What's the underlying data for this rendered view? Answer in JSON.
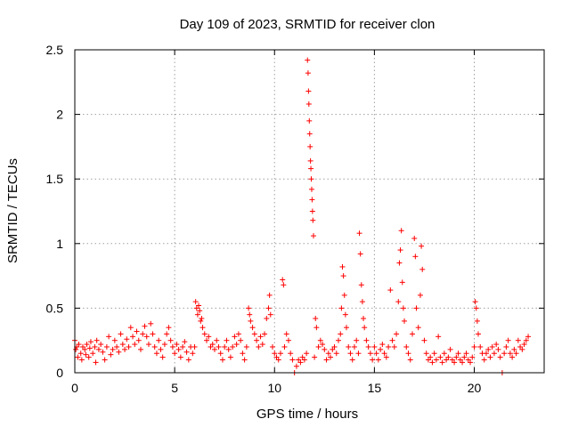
{
  "chart_data": {
    "type": "scatter",
    "title": "Day 109 of 2023, SRMTID for receiver clon",
    "xlabel": "GPS time / hours",
    "ylabel": "SRMTID / TECUs",
    "xlim": [
      0,
      23.5
    ],
    "ylim": [
      0,
      2.5
    ],
    "xticks": [
      0,
      5,
      10,
      15,
      20
    ],
    "yticks": [
      0,
      0.5,
      1,
      1.5,
      2,
      2.5
    ],
    "xtick_labels": [
      "0",
      "5",
      "10",
      "15",
      "20"
    ],
    "ytick_labels": [
      "0",
      "0.5",
      "1",
      "1.5",
      "2",
      "2.5"
    ],
    "grid": true,
    "marker": "+",
    "colors": {
      "series": "#ff0000",
      "grid": "#a0a0a0"
    },
    "series": [
      {
        "name": "SRMTID",
        "points": [
          [
            0.0,
            0.25
          ],
          [
            0.05,
            0.18
          ],
          [
            0.1,
            0.2
          ],
          [
            0.15,
            0.12
          ],
          [
            0.2,
            0.22
          ],
          [
            0.3,
            0.15
          ],
          [
            0.35,
            0.1
          ],
          [
            0.4,
            0.2
          ],
          [
            0.5,
            0.18
          ],
          [
            0.55,
            0.14
          ],
          [
            0.6,
            0.22
          ],
          [
            0.7,
            0.12
          ],
          [
            0.75,
            0.19
          ],
          [
            0.8,
            0.24
          ],
          [
            0.9,
            0.15
          ],
          [
            1.0,
            0.2
          ],
          [
            1.05,
            0.08
          ],
          [
            1.1,
            0.25
          ],
          [
            1.2,
            0.18
          ],
          [
            1.3,
            0.22
          ],
          [
            1.4,
            0.16
          ],
          [
            1.5,
            0.1
          ],
          [
            1.6,
            0.2
          ],
          [
            1.7,
            0.28
          ],
          [
            1.8,
            0.14
          ],
          [
            1.9,
            0.18
          ],
          [
            2.0,
            0.25
          ],
          [
            2.1,
            0.2
          ],
          [
            2.2,
            0.16
          ],
          [
            2.3,
            0.3
          ],
          [
            2.4,
            0.22
          ],
          [
            2.5,
            0.18
          ],
          [
            2.6,
            0.26
          ],
          [
            2.7,
            0.2
          ],
          [
            2.8,
            0.35
          ],
          [
            2.9,
            0.28
          ],
          [
            3.0,
            0.22
          ],
          [
            3.1,
            0.32
          ],
          [
            3.2,
            0.25
          ],
          [
            3.3,
            0.18
          ],
          [
            3.4,
            0.3
          ],
          [
            3.5,
            0.36
          ],
          [
            3.6,
            0.28
          ],
          [
            3.7,
            0.22
          ],
          [
            3.8,
            0.38
          ],
          [
            3.9,
            0.3
          ],
          [
            4.0,
            0.2
          ],
          [
            4.1,
            0.15
          ],
          [
            4.2,
            0.25
          ],
          [
            4.3,
            0.18
          ],
          [
            4.4,
            0.12
          ],
          [
            4.5,
            0.22
          ],
          [
            4.6,
            0.3
          ],
          [
            4.7,
            0.35
          ],
          [
            4.8,
            0.25
          ],
          [
            4.9,
            0.2
          ],
          [
            5.0,
            0.15
          ],
          [
            5.1,
            0.22
          ],
          [
            5.2,
            0.18
          ],
          [
            5.3,
            0.12
          ],
          [
            5.4,
            0.2
          ],
          [
            5.5,
            0.24
          ],
          [
            5.6,
            0.16
          ],
          [
            5.7,
            0.1
          ],
          [
            5.8,
            0.2
          ],
          [
            5.9,
            0.15
          ],
          [
            6.0,
            0.2
          ],
          [
            6.05,
            0.55
          ],
          [
            6.1,
            0.5
          ],
          [
            6.15,
            0.45
          ],
          [
            6.2,
            0.52
          ],
          [
            6.25,
            0.48
          ],
          [
            6.3,
            0.4
          ],
          [
            6.35,
            0.42
          ],
          [
            6.4,
            0.35
          ],
          [
            6.5,
            0.3
          ],
          [
            6.6,
            0.25
          ],
          [
            6.7,
            0.28
          ],
          [
            6.8,
            0.2
          ],
          [
            6.9,
            0.22
          ],
          [
            7.0,
            0.18
          ],
          [
            7.1,
            0.25
          ],
          [
            7.2,
            0.2
          ],
          [
            7.3,
            0.15
          ],
          [
            7.4,
            0.1
          ],
          [
            7.5,
            0.2
          ],
          [
            7.6,
            0.25
          ],
          [
            7.7,
            0.18
          ],
          [
            7.8,
            0.12
          ],
          [
            7.9,
            0.2
          ],
          [
            8.0,
            0.28
          ],
          [
            8.1,
            0.22
          ],
          [
            8.2,
            0.3
          ],
          [
            8.3,
            0.25
          ],
          [
            8.4,
            0.15
          ],
          [
            8.5,
            0.1
          ],
          [
            8.6,
            0.2
          ],
          [
            8.7,
            0.5
          ],
          [
            8.75,
            0.45
          ],
          [
            8.8,
            0.4
          ],
          [
            8.9,
            0.35
          ],
          [
            9.0,
            0.3
          ],
          [
            9.1,
            0.25
          ],
          [
            9.2,
            0.2
          ],
          [
            9.3,
            0.28
          ],
          [
            9.4,
            0.22
          ],
          [
            9.5,
            0.3
          ],
          [
            9.6,
            0.42
          ],
          [
            9.7,
            0.5
          ],
          [
            9.75,
            0.6
          ],
          [
            9.8,
            0.45
          ],
          [
            9.9,
            0.2
          ],
          [
            10.0,
            0.15
          ],
          [
            10.1,
            0.12
          ],
          [
            10.2,
            0.1
          ],
          [
            10.3,
            0.15
          ],
          [
            10.4,
            0.72
          ],
          [
            10.45,
            0.68
          ],
          [
            10.5,
            0.2
          ],
          [
            10.6,
            0.3
          ],
          [
            10.7,
            0.25
          ],
          [
            10.8,
            0.15
          ],
          [
            10.9,
            0.1
          ],
          [
            11.0,
            0.0
          ],
          [
            11.1,
            0.05
          ],
          [
            11.2,
            0.1
          ],
          [
            11.3,
            0.08
          ],
          [
            11.4,
            0.12
          ],
          [
            11.5,
            0.1
          ],
          [
            11.6,
            0.15
          ],
          [
            11.65,
            2.42
          ],
          [
            11.68,
            2.32
          ],
          [
            11.7,
            2.18
          ],
          [
            11.72,
            2.08
          ],
          [
            11.74,
            1.95
          ],
          [
            11.76,
            1.85
          ],
          [
            11.78,
            1.75
          ],
          [
            11.8,
            1.64
          ],
          [
            11.82,
            1.58
          ],
          [
            11.84,
            1.5
          ],
          [
            11.86,
            1.42
          ],
          [
            11.88,
            1.34
          ],
          [
            11.9,
            1.25
          ],
          [
            11.92,
            1.18
          ],
          [
            11.95,
            1.06
          ],
          [
            12.0,
            0.12
          ],
          [
            12.05,
            0.42
          ],
          [
            12.1,
            0.35
          ],
          [
            12.2,
            0.2
          ],
          [
            12.3,
            0.25
          ],
          [
            12.4,
            0.22
          ],
          [
            12.5,
            0.18
          ],
          [
            12.6,
            0.1
          ],
          [
            12.7,
            0.15
          ],
          [
            12.8,
            0.12
          ],
          [
            12.9,
            0.18
          ],
          [
            13.0,
            0.2
          ],
          [
            13.1,
            0.15
          ],
          [
            13.2,
            0.25
          ],
          [
            13.3,
            0.3
          ],
          [
            13.35,
            0.5
          ],
          [
            13.4,
            0.82
          ],
          [
            13.45,
            0.75
          ],
          [
            13.5,
            0.6
          ],
          [
            13.55,
            0.45
          ],
          [
            13.6,
            0.35
          ],
          [
            13.7,
            0.2
          ],
          [
            13.8,
            0.15
          ],
          [
            13.9,
            0.1
          ],
          [
            14.0,
            0.2
          ],
          [
            14.1,
            0.25
          ],
          [
            14.2,
            0.15
          ],
          [
            14.25,
            1.08
          ],
          [
            14.3,
            0.92
          ],
          [
            14.35,
            0.68
          ],
          [
            14.4,
            0.55
          ],
          [
            14.45,
            0.42
          ],
          [
            14.5,
            0.35
          ],
          [
            14.6,
            0.25
          ],
          [
            14.7,
            0.2
          ],
          [
            14.8,
            0.15
          ],
          [
            14.9,
            0.1
          ],
          [
            15.0,
            0.2
          ],
          [
            15.1,
            0.15
          ],
          [
            15.2,
            0.1
          ],
          [
            15.3,
            0.18
          ],
          [
            15.4,
            0.22
          ],
          [
            15.5,
            0.15
          ],
          [
            15.6,
            0.12
          ],
          [
            15.7,
            0.2
          ],
          [
            15.8,
            0.64
          ],
          [
            15.9,
            0.25
          ],
          [
            16.0,
            0.2
          ],
          [
            16.1,
            0.3
          ],
          [
            16.2,
            0.55
          ],
          [
            16.25,
            0.85
          ],
          [
            16.3,
            0.95
          ],
          [
            16.35,
            1.1
          ],
          [
            16.4,
            0.7
          ],
          [
            16.45,
            0.5
          ],
          [
            16.5,
            0.4
          ],
          [
            16.6,
            0.2
          ],
          [
            16.7,
            0.15
          ],
          [
            16.8,
            0.1
          ],
          [
            16.9,
            0.3
          ],
          [
            17.0,
            1.04
          ],
          [
            17.05,
            0.9
          ],
          [
            17.1,
            0.5
          ],
          [
            17.2,
            0.35
          ],
          [
            17.3,
            0.6
          ],
          [
            17.35,
            0.98
          ],
          [
            17.4,
            0.8
          ],
          [
            17.5,
            0.25
          ],
          [
            17.6,
            0.15
          ],
          [
            17.7,
            0.1
          ],
          [
            17.8,
            0.12
          ],
          [
            17.9,
            0.08
          ],
          [
            18.0,
            0.15
          ],
          [
            18.1,
            0.1
          ],
          [
            18.2,
            0.28
          ],
          [
            18.3,
            0.12
          ],
          [
            18.4,
            0.08
          ],
          [
            18.5,
            0.15
          ],
          [
            18.6,
            0.1
          ],
          [
            18.7,
            0.12
          ],
          [
            18.8,
            0.18
          ],
          [
            18.9,
            0.1
          ],
          [
            19.0,
            0.08
          ],
          [
            19.1,
            0.12
          ],
          [
            19.2,
            0.15
          ],
          [
            19.3,
            0.1
          ],
          [
            19.4,
            0.08
          ],
          [
            19.5,
            0.12
          ],
          [
            19.6,
            0.15
          ],
          [
            19.7,
            0.1
          ],
          [
            19.8,
            0.08
          ],
          [
            19.9,
            0.12
          ],
          [
            20.0,
            0.2
          ],
          [
            20.05,
            0.55
          ],
          [
            20.1,
            0.5
          ],
          [
            20.15,
            0.4
          ],
          [
            20.2,
            0.3
          ],
          [
            20.3,
            0.2
          ],
          [
            20.4,
            0.15
          ],
          [
            20.5,
            0.1
          ],
          [
            20.6,
            0.15
          ],
          [
            20.7,
            0.18
          ],
          [
            20.8,
            0.12
          ],
          [
            20.9,
            0.2
          ],
          [
            21.0,
            0.15
          ],
          [
            21.1,
            0.22
          ],
          [
            21.2,
            0.18
          ],
          [
            21.3,
            0.12
          ],
          [
            21.4,
            0.0
          ],
          [
            21.5,
            0.15
          ],
          [
            21.6,
            0.2
          ],
          [
            21.7,
            0.25
          ],
          [
            21.8,
            0.15
          ],
          [
            21.9,
            0.12
          ],
          [
            22.0,
            0.18
          ],
          [
            22.1,
            0.15
          ],
          [
            22.2,
            0.25
          ],
          [
            22.3,
            0.2
          ],
          [
            22.4,
            0.18
          ],
          [
            22.5,
            0.22
          ],
          [
            22.6,
            0.25
          ],
          [
            22.7,
            0.28
          ]
        ]
      }
    ]
  }
}
